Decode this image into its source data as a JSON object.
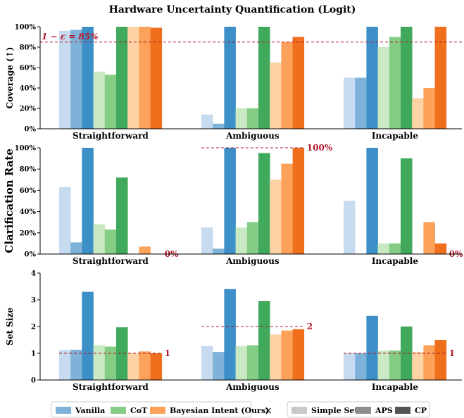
{
  "title": "Hardware Uncertainty Quantification (Logit)",
  "colors": {
    "vanilla": [
      "#c6dbef",
      "#7fb2d9",
      "#3d8fc8"
    ],
    "cot": [
      "#c9e9c2",
      "#85cc85",
      "#41a95b"
    ],
    "bayes": [
      "#fdd3a6",
      "#fba159",
      "#f06f1c"
    ],
    "threshold": "#b2182b",
    "legend_gray": [
      "#c8c8c8",
      "#8e8e8e",
      "#545454"
    ]
  },
  "legend": {
    "methods": [
      {
        "label": "Vanilla",
        "color": "#7fb2d9"
      },
      {
        "label": "CoT",
        "color": "#85cc85"
      },
      {
        "label": "Bayesian Intent (Ours)",
        "color": "#fba159"
      }
    ],
    "times": "×",
    "variants": [
      {
        "label": "Simple Set",
        "color": "#c8c8c8"
      },
      {
        "label": "APS",
        "color": "#8e8e8e"
      },
      {
        "label": "CP",
        "color": "#545454"
      }
    ]
  },
  "chart_data": [
    {
      "type": "bar",
      "ylabel": "Coverage (↑)",
      "ylim": [
        0,
        100
      ],
      "yticks": [
        "0%",
        "20%",
        "40%",
        "60%",
        "80%",
        "100%"
      ],
      "ytick_values": [
        0,
        20,
        40,
        60,
        80,
        100
      ],
      "categories": [
        "Straightforward",
        "Ambiguous",
        "Incapable"
      ],
      "series_order": [
        "Vanilla Simple Set",
        "Vanilla APS",
        "Vanilla CP",
        "CoT Simple Set",
        "CoT APS",
        "CoT CP",
        "Bayesian Intent Simple Set",
        "Bayesian Intent APS",
        "Bayesian Intent CP"
      ],
      "values": [
        [
          96,
          97,
          100,
          56,
          53,
          100,
          100,
          100,
          99
        ],
        [
          14,
          5,
          100,
          20,
          20,
          100,
          65,
          85,
          90
        ],
        [
          50,
          50,
          100,
          80,
          90,
          100,
          30,
          40,
          100
        ]
      ],
      "reference_lines": [
        {
          "value": 85,
          "label": "1 − ε = 85%",
          "span": "full",
          "label_position": "left"
        }
      ]
    },
    {
      "type": "bar",
      "ylabel": "Clarification Rate",
      "ylim": [
        0,
        100
      ],
      "yticks": [
        "0%",
        "20%",
        "40%",
        "60%",
        "80%",
        "100%"
      ],
      "ytick_values": [
        0,
        20,
        40,
        60,
        80,
        100
      ],
      "categories": [
        "Straightforward",
        "Ambiguous",
        "Incapable"
      ],
      "series_order": [
        "Vanilla Simple Set",
        "Vanilla APS",
        "Vanilla CP",
        "CoT Simple Set",
        "CoT APS",
        "CoT CP",
        "Bayesian Intent Simple Set",
        "Bayesian Intent APS",
        "Bayesian Intent CP"
      ],
      "values": [
        [
          63,
          11,
          100,
          28,
          23,
          72,
          0,
          7,
          0
        ],
        [
          25,
          5,
          100,
          25,
          30,
          95,
          70,
          85,
          100
        ],
        [
          50,
          0,
          100,
          10,
          10,
          90,
          0,
          30,
          10
        ]
      ],
      "reference_lines": [
        {
          "value": 0,
          "label": "0%",
          "span": "group",
          "group": 0
        },
        {
          "value": 100,
          "label": "100%",
          "span": "group",
          "group": 1
        },
        {
          "value": 0,
          "label": "0%",
          "span": "group",
          "group": 2
        }
      ]
    },
    {
      "type": "bar",
      "ylabel": "Set Size",
      "ylim": [
        0,
        4
      ],
      "yticks": [
        "0",
        "1",
        "2",
        "3",
        "4"
      ],
      "ytick_values": [
        0,
        1,
        2,
        3,
        4
      ],
      "categories": [
        "Straightforward",
        "Ambiguous",
        "Incapable"
      ],
      "series_order": [
        "Vanilla Simple Set",
        "Vanilla APS",
        "Vanilla CP",
        "CoT Simple Set",
        "CoT APS",
        "CoT CP",
        "Bayesian Intent Simple Set",
        "Bayesian Intent APS",
        "Bayesian Intent CP"
      ],
      "values": [
        [
          1.12,
          1.13,
          3.3,
          1.3,
          1.25,
          1.97,
          1.0,
          1.07,
          1.0
        ],
        [
          1.27,
          1.05,
          3.4,
          1.27,
          1.3,
          2.95,
          1.7,
          1.85,
          1.9
        ],
        [
          1.0,
          1.0,
          2.4,
          1.1,
          1.1,
          2.0,
          1.05,
          1.3,
          1.5
        ]
      ],
      "reference_lines": [
        {
          "value": 1,
          "label": "1",
          "span": "group",
          "group": 0
        },
        {
          "value": 2,
          "label": "2",
          "span": "group",
          "group": 1
        },
        {
          "value": 1,
          "label": "1",
          "span": "group",
          "group": 2
        }
      ]
    }
  ]
}
